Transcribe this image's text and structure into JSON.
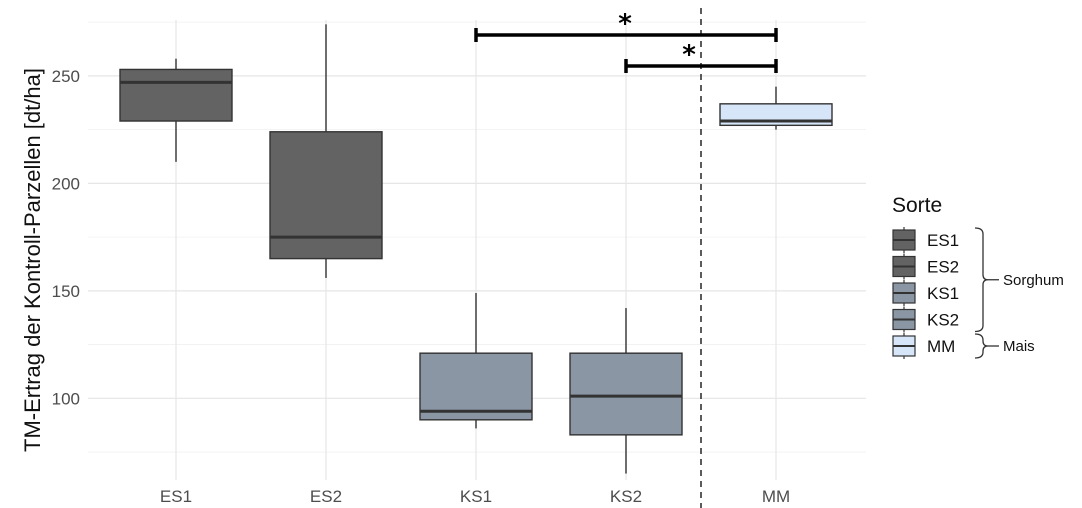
{
  "chart_data": {
    "type": "box",
    "title": "",
    "xlabel": "",
    "ylabel": "TM-Ertrag der Kontroll-Parzellen [dt/ha]",
    "ylim": [
      62,
      276
    ],
    "yticks": [
      100,
      150,
      200,
      250
    ],
    "grid": true,
    "categories": [
      "ES1",
      "ES2",
      "KS1",
      "KS2",
      "MM"
    ],
    "boxes": [
      {
        "category": "ES1",
        "min": 210,
        "q1": 229,
        "median": 247,
        "q3": 253,
        "max": 258,
        "fill": "#636363"
      },
      {
        "category": "ES2",
        "min": 156,
        "q1": 165,
        "median": 175,
        "q3": 224,
        "max": 274,
        "fill": "#636363"
      },
      {
        "category": "KS1",
        "min": 86,
        "q1": 90,
        "median": 94,
        "q3": 121,
        "max": 149,
        "fill": "#8a96a4"
      },
      {
        "category": "KS2",
        "min": 65,
        "q1": 83,
        "median": 101,
        "q3": 121,
        "max": 142,
        "fill": "#8a96a4"
      },
      {
        "category": "MM",
        "min": 225,
        "q1": 227,
        "median": 229,
        "q3": 237,
        "max": 245,
        "fill": "#d6e6f8"
      }
    ],
    "significance": [
      {
        "from": "KS1",
        "to": "MM",
        "label": "*"
      },
      {
        "from": "KS2",
        "to": "MM",
        "label": "*"
      }
    ],
    "separator_between": [
      "KS2",
      "MM"
    ],
    "legend": {
      "title": "Sorte",
      "placement": "right",
      "items": [
        {
          "label": "ES1",
          "fill": "#636363"
        },
        {
          "label": "ES2",
          "fill": "#636363"
        },
        {
          "label": "KS1",
          "fill": "#8a96a4"
        },
        {
          "label": "KS2",
          "fill": "#8a96a4"
        },
        {
          "label": "MM",
          "fill": "#d6e6f8"
        }
      ],
      "groups": [
        {
          "label": "Sorghum",
          "members": [
            "ES1",
            "ES2",
            "KS1",
            "KS2"
          ]
        },
        {
          "label": "Mais",
          "members": [
            "MM"
          ]
        }
      ]
    }
  }
}
